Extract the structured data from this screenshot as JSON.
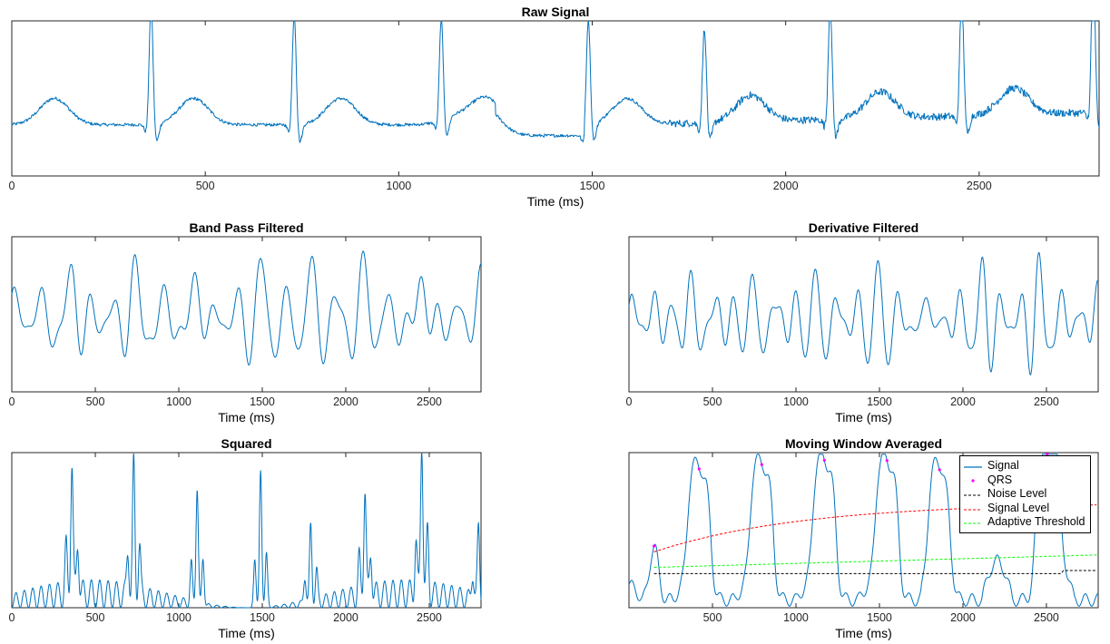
{
  "chart_data": [
    {
      "id": "raw",
      "type": "line",
      "title": "Raw Signal",
      "xlabel": "Time (ms)",
      "xlim": [
        0,
        2810
      ],
      "xticks": [
        0,
        500,
        1000,
        1500,
        2000,
        2500
      ],
      "show_y_ticks": false,
      "grid": false,
      "series": [
        {
          "color": "#0072BD",
          "style": "ecg_raw"
        }
      ],
      "r_peaks_ms": [
        360,
        730,
        1110,
        1490,
        1790,
        2115,
        2455,
        2795
      ]
    },
    {
      "id": "bandpass",
      "type": "line",
      "title": "Band Pass Filtered",
      "xlabel": "Time (ms)",
      "xlim": [
        0,
        2810
      ],
      "xticks": [
        0,
        500,
        1000,
        1500,
        2000,
        2500
      ],
      "show_y_ticks": false,
      "grid": false,
      "series": [
        {
          "color": "#0072BD",
          "style": "bandpass"
        }
      ]
    },
    {
      "id": "derivative",
      "type": "line",
      "title": "Derivative Filtered",
      "xlabel": "Time (ms)",
      "xlim": [
        0,
        2810
      ],
      "xticks": [
        0,
        500,
        1000,
        1500,
        2000,
        2500
      ],
      "show_y_ticks": false,
      "grid": false,
      "series": [
        {
          "color": "#0072BD",
          "style": "derivative"
        }
      ]
    },
    {
      "id": "squared",
      "type": "line",
      "title": "Squared",
      "xlabel": "Time (ms)",
      "xlim": [
        0,
        2810
      ],
      "xticks": [
        0,
        500,
        1000,
        1500,
        2000,
        2500
      ],
      "show_y_ticks": false,
      "grid": false,
      "series": [
        {
          "color": "#0072BD",
          "style": "squared"
        }
      ]
    },
    {
      "id": "mwa",
      "type": "line",
      "title": "Moving Window Averaged",
      "xlabel": "Time (ms)",
      "xlim": [
        0,
        2810
      ],
      "xticks": [
        500,
        1000,
        1500,
        2000,
        2500
      ],
      "show_y_ticks": false,
      "grid": false,
      "legend_position": "top-right",
      "series": [
        {
          "name": "Signal",
          "color": "#0072BD",
          "style": "solid"
        },
        {
          "name": "QRS",
          "color": "#FF00FF",
          "style": "markers"
        },
        {
          "name": "Noise Level",
          "color": "#000000",
          "style": "dashed"
        },
        {
          "name": "Signal Level",
          "color": "#FF0000",
          "style": "dashed"
        },
        {
          "name": "Adaptive Threshold",
          "color": "#00FF00",
          "style": "dashed"
        }
      ],
      "qrs_ms": [
        150,
        420,
        795,
        1170,
        1545,
        1860,
        2505
      ]
    }
  ]
}
